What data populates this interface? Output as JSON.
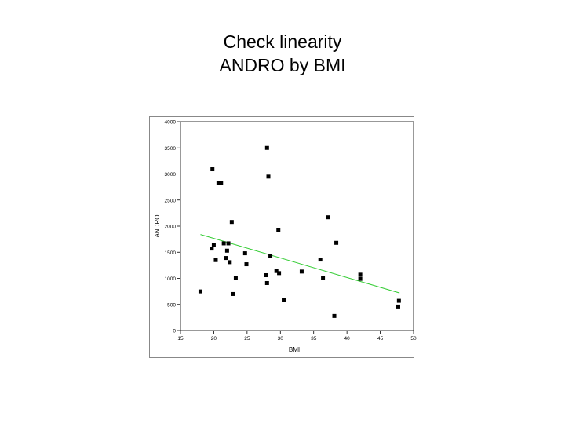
{
  "slide": {
    "title_line1": "Check linearity",
    "title_line2": "ANDRO by BMI"
  },
  "chart_data": {
    "type": "scatter",
    "xlabel": "BMI",
    "ylabel": "ANDRO",
    "xlim": [
      15,
      50
    ],
    "ylim": [
      0,
      4000
    ],
    "xticks": [
      15,
      20,
      25,
      30,
      35,
      40,
      45,
      50
    ],
    "yticks": [
      0,
      500,
      1000,
      1500,
      2000,
      2500,
      3000,
      3500,
      4000
    ],
    "grid": false,
    "legend": "none",
    "marker_color": "#000000",
    "fit_line": {
      "type": "linear",
      "color": "#33cc33",
      "x": [
        18.0,
        47.9
      ],
      "y": [
        1840,
        720
      ]
    },
    "points": [
      {
        "x": 18.0,
        "y": 750
      },
      {
        "x": 19.7,
        "y": 1570
      },
      {
        "x": 19.8,
        "y": 3090
      },
      {
        "x": 20.0,
        "y": 1640
      },
      {
        "x": 20.3,
        "y": 1350
      },
      {
        "x": 20.7,
        "y": 2830
      },
      {
        "x": 21.1,
        "y": 2830
      },
      {
        "x": 21.5,
        "y": 1670
      },
      {
        "x": 21.8,
        "y": 1390
      },
      {
        "x": 22.0,
        "y": 1530
      },
      {
        "x": 22.2,
        "y": 1670
      },
      {
        "x": 22.4,
        "y": 1310
      },
      {
        "x": 22.7,
        "y": 2080
      },
      {
        "x": 22.9,
        "y": 700
      },
      {
        "x": 23.3,
        "y": 1000
      },
      {
        "x": 24.7,
        "y": 1480
      },
      {
        "x": 24.9,
        "y": 1270
      },
      {
        "x": 27.9,
        "y": 1060
      },
      {
        "x": 28.0,
        "y": 3500
      },
      {
        "x": 28.0,
        "y": 910
      },
      {
        "x": 28.2,
        "y": 2950
      },
      {
        "x": 28.5,
        "y": 1430
      },
      {
        "x": 29.4,
        "y": 1140
      },
      {
        "x": 29.7,
        "y": 1930
      },
      {
        "x": 29.8,
        "y": 1100
      },
      {
        "x": 30.5,
        "y": 580
      },
      {
        "x": 33.2,
        "y": 1130
      },
      {
        "x": 36.0,
        "y": 1360
      },
      {
        "x": 36.4,
        "y": 1000
      },
      {
        "x": 37.2,
        "y": 2170
      },
      {
        "x": 38.1,
        "y": 280
      },
      {
        "x": 38.4,
        "y": 1680
      },
      {
        "x": 42.0,
        "y": 1070
      },
      {
        "x": 42.0,
        "y": 990
      },
      {
        "x": 47.7,
        "y": 460
      },
      {
        "x": 47.8,
        "y": 570
      }
    ]
  }
}
